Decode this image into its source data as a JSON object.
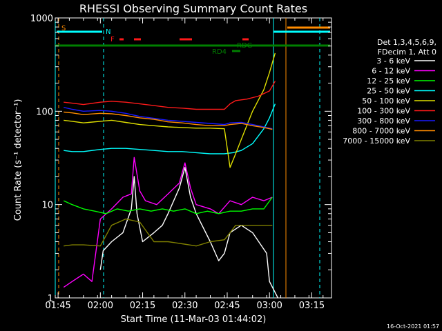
{
  "chart_data": {
    "type": "line",
    "title": "RHESSI Observing Summary Count Rates",
    "xlabel": "Start Time (11-Mar-03 01:44:02)",
    "ylabel": "Count Rate (s⁻¹ detector⁻¹)",
    "yscale": "log",
    "ylim": [
      1,
      1000
    ],
    "yticks": [
      "1",
      "10",
      "100",
      "1000"
    ],
    "xlim_minutes": [
      0,
      98
    ],
    "xticks": [
      {
        "label": "01:45",
        "t": 1
      },
      {
        "label": "02:00",
        "t": 16
      },
      {
        "label": "02:15",
        "t": 31
      },
      {
        "label": "02:30",
        "t": 46
      },
      {
        "label": "02:45",
        "t": 61
      },
      {
        "label": "03:00",
        "t": 76
      },
      {
        "label": "03:15",
        "t": 91
      }
    ],
    "legend": {
      "position": "right",
      "header": [
        "Det 1,3,4,5,6,9,",
        "FDecim 1, Att 0"
      ],
      "entries": [
        {
          "label": "3 - 6 keV",
          "color": "#ffffff"
        },
        {
          "label": "6 - 12 keV",
          "color": "#ff00ff"
        },
        {
          "label": "12 - 25 keV",
          "color": "#00ff00"
        },
        {
          "label": "25 - 50 keV",
          "color": "#00ffff"
        },
        {
          "label": "50 - 100 keV",
          "color": "#e0e000"
        },
        {
          "label": "100 - 300 keV",
          "color": "#ff1a1a"
        },
        {
          "label": "300 - 800 keV",
          "color": "#1a1aff"
        },
        {
          "label": "800 - 7000 keV",
          "color": "#ff8c00"
        },
        {
          "label": "7000 - 15000 keV",
          "color": "#808000"
        }
      ]
    },
    "flags": [
      {
        "label": "S",
        "color": "#ff8c00"
      },
      {
        "label": "N",
        "color": "#00ffff"
      },
      {
        "label": "F",
        "color": "#ff1a1a"
      },
      {
        "label": "RD4",
        "color": "#008000"
      },
      {
        "label": "RDG",
        "color": "#008000"
      }
    ],
    "series": [
      {
        "name": "3 - 6 keV",
        "color": "#ffffff",
        "points": [
          [
            16,
            2
          ],
          [
            17,
            3.2
          ],
          [
            20,
            4
          ],
          [
            24,
            5
          ],
          [
            27,
            9
          ],
          [
            28,
            20
          ],
          [
            29,
            8
          ],
          [
            31,
            4
          ],
          [
            35,
            5
          ],
          [
            38,
            6
          ],
          [
            40,
            8
          ],
          [
            44,
            15
          ],
          [
            46,
            25
          ],
          [
            48,
            12
          ],
          [
            50,
            8
          ],
          [
            55,
            4
          ],
          [
            58,
            2.5
          ],
          [
            60,
            3
          ],
          [
            62,
            5
          ],
          [
            66,
            6
          ],
          [
            70,
            5
          ],
          [
            75,
            3
          ],
          [
            76,
            1.5
          ],
          [
            79,
            1
          ]
        ]
      },
      {
        "name": "6 - 12 keV",
        "color": "#ff00ff",
        "points": [
          [
            3,
            1.3
          ],
          [
            6,
            1.5
          ],
          [
            10,
            1.8
          ],
          [
            13,
            1.5
          ],
          [
            16,
            7
          ],
          [
            20,
            9
          ],
          [
            24,
            12
          ],
          [
            27,
            13
          ],
          [
            28,
            32
          ],
          [
            30,
            14
          ],
          [
            32,
            11
          ],
          [
            36,
            10
          ],
          [
            40,
            13
          ],
          [
            44,
            17
          ],
          [
            46,
            28
          ],
          [
            48,
            15
          ],
          [
            50,
            10
          ],
          [
            55,
            9
          ],
          [
            58,
            8
          ],
          [
            62,
            11
          ],
          [
            66,
            10
          ],
          [
            70,
            12
          ],
          [
            74,
            11
          ],
          [
            77,
            12
          ]
        ]
      },
      {
        "name": "12 - 25 keV",
        "color": "#00ff00",
        "points": [
          [
            3,
            11
          ],
          [
            6,
            10
          ],
          [
            10,
            9
          ],
          [
            14,
            8.5
          ],
          [
            18,
            8
          ],
          [
            22,
            9
          ],
          [
            26,
            8.5
          ],
          [
            30,
            9
          ],
          [
            34,
            8.5
          ],
          [
            38,
            9
          ],
          [
            42,
            8.5
          ],
          [
            46,
            9
          ],
          [
            50,
            8
          ],
          [
            54,
            8.5
          ],
          [
            58,
            8
          ],
          [
            62,
            8.5
          ],
          [
            66,
            8.5
          ],
          [
            70,
            9
          ],
          [
            74,
            9
          ],
          [
            77,
            12
          ]
        ]
      },
      {
        "name": "25 - 50 keV",
        "color": "#00ffff",
        "points": [
          [
            3,
            38
          ],
          [
            6,
            37
          ],
          [
            10,
            37
          ],
          [
            16,
            39
          ],
          [
            20,
            40
          ],
          [
            25,
            40
          ],
          [
            30,
            39
          ],
          [
            35,
            38
          ],
          [
            40,
            37
          ],
          [
            45,
            37
          ],
          [
            50,
            36
          ],
          [
            55,
            35
          ],
          [
            60,
            35
          ],
          [
            63,
            36
          ],
          [
            66,
            38
          ],
          [
            70,
            45
          ],
          [
            74,
            65
          ],
          [
            76,
            85
          ],
          [
            78,
            120
          ]
        ]
      },
      {
        "name": "50 - 100 keV",
        "color": "#e0e000",
        "points": [
          [
            3,
            80
          ],
          [
            6,
            78
          ],
          [
            10,
            75
          ],
          [
            16,
            78
          ],
          [
            20,
            80
          ],
          [
            25,
            76
          ],
          [
            30,
            72
          ],
          [
            35,
            70
          ],
          [
            40,
            68
          ],
          [
            45,
            67
          ],
          [
            50,
            66
          ],
          [
            55,
            66
          ],
          [
            60,
            65
          ],
          [
            62,
            25
          ],
          [
            64,
            35
          ],
          [
            66,
            50
          ],
          [
            70,
            100
          ],
          [
            74,
            170
          ],
          [
            76,
            260
          ],
          [
            78,
            420
          ]
        ]
      },
      {
        "name": "100 - 300 keV",
        "color": "#ff1a1a",
        "points": [
          [
            3,
            125
          ],
          [
            6,
            122
          ],
          [
            10,
            118
          ],
          [
            16,
            125
          ],
          [
            20,
            128
          ],
          [
            25,
            125
          ],
          [
            30,
            120
          ],
          [
            35,
            115
          ],
          [
            40,
            110
          ],
          [
            45,
            108
          ],
          [
            50,
            105
          ],
          [
            55,
            105
          ],
          [
            60,
            105
          ],
          [
            62,
            120
          ],
          [
            64,
            130
          ],
          [
            68,
            135
          ],
          [
            72,
            145
          ],
          [
            76,
            165
          ],
          [
            78,
            210
          ]
        ]
      },
      {
        "name": "300 - 800 keV",
        "color": "#1a1aff",
        "points": [
          [
            3,
            110
          ],
          [
            6,
            105
          ],
          [
            10,
            100
          ],
          [
            16,
            102
          ],
          [
            20,
            100
          ],
          [
            25,
            95
          ],
          [
            30,
            88
          ],
          [
            35,
            84
          ],
          [
            40,
            80
          ],
          [
            45,
            78
          ],
          [
            50,
            76
          ],
          [
            55,
            74
          ],
          [
            60,
            72
          ],
          [
            62,
            75
          ],
          [
            66,
            76
          ],
          [
            70,
            72
          ],
          [
            74,
            68
          ],
          [
            77,
            65
          ]
        ]
      },
      {
        "name": "800 - 7000 keV",
        "color": "#ff8c00",
        "points": [
          [
            3,
            98
          ],
          [
            6,
            96
          ],
          [
            10,
            92
          ],
          [
            16,
            95
          ],
          [
            20,
            94
          ],
          [
            25,
            90
          ],
          [
            30,
            85
          ],
          [
            35,
            82
          ],
          [
            40,
            77
          ],
          [
            45,
            75
          ],
          [
            50,
            72
          ],
          [
            55,
            70
          ],
          [
            60,
            70
          ],
          [
            62,
            72
          ],
          [
            66,
            74
          ],
          [
            70,
            70
          ],
          [
            74,
            67
          ],
          [
            77,
            64
          ]
        ]
      },
      {
        "name": "7000 - 15000 keV",
        "color": "#808000",
        "points": [
          [
            3,
            3.6
          ],
          [
            6,
            3.7
          ],
          [
            10,
            3.7
          ],
          [
            16,
            3.6
          ],
          [
            20,
            6
          ],
          [
            25,
            7
          ],
          [
            30,
            6.5
          ],
          [
            35,
            4
          ],
          [
            40,
            4
          ],
          [
            45,
            3.8
          ],
          [
            50,
            3.6
          ],
          [
            55,
            4
          ],
          [
            60,
            4.2
          ],
          [
            62,
            5
          ],
          [
            64,
            6
          ],
          [
            70,
            6
          ],
          [
            74,
            6
          ],
          [
            77,
            6
          ]
        ]
      }
    ]
  },
  "footer": {
    "timestamp": "16-Oct-2021 01:57"
  }
}
